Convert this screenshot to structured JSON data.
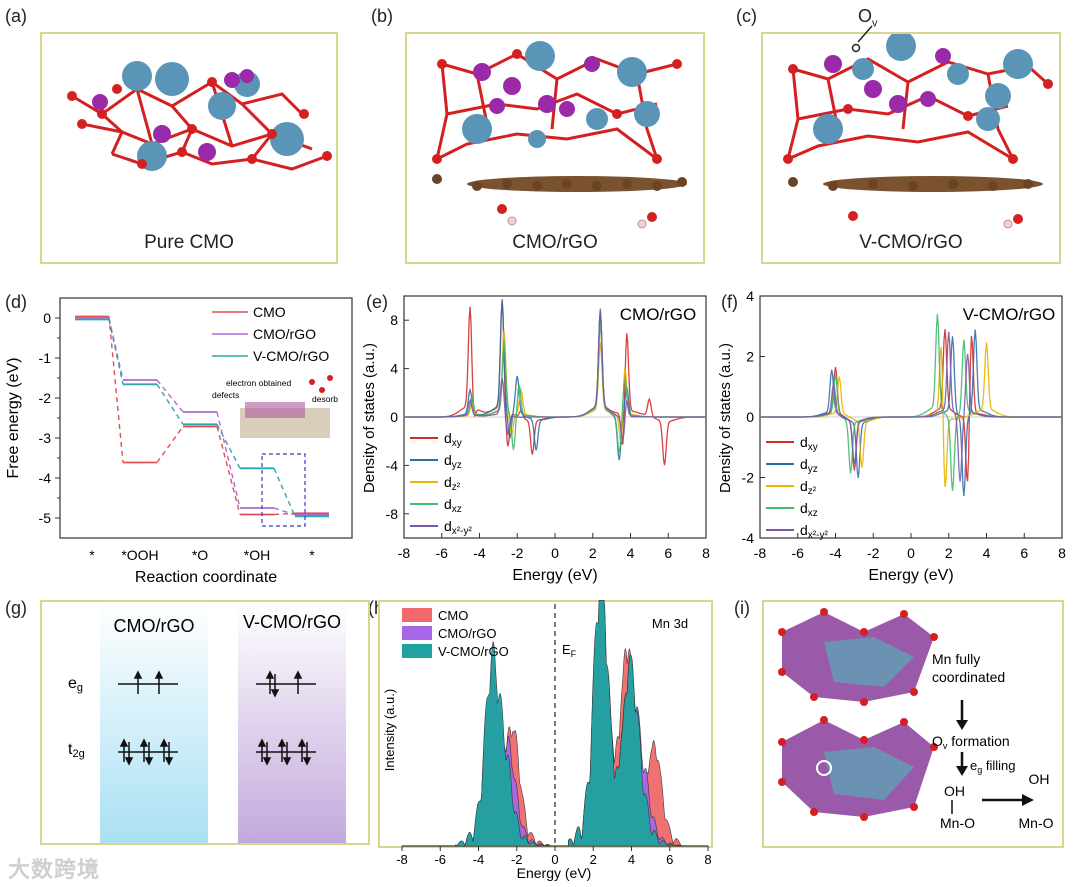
{
  "labels": {
    "a": "(a)",
    "b": "(b)",
    "c": "(c)",
    "d": "(d)",
    "e": "(e)",
    "f": "(f)",
    "g": "(g)",
    "h": "(h)",
    "i": "(i)"
  },
  "structures": {
    "a_caption": "Pure CMO",
    "b_caption": "CMO/rGO",
    "c_caption": "V-CMO/rGO",
    "ov_label": "O",
    "ov_sub": "v"
  },
  "panel_d": {
    "ylabel": "Free energy (eV)",
    "xlabel": "Reaction coordinate",
    "steps": [
      "*",
      "*OOH",
      "*O",
      "*OH",
      "*"
    ],
    "legend": [
      "CMO",
      "CMO/rGO",
      "V-CMO/rGO"
    ],
    "inset": {
      "electron": "electron obtained",
      "defects": "defects",
      "desorb": "desorb"
    }
  },
  "panel_e": {
    "title": "CMO/rGO",
    "xlabel": "Energy (eV)",
    "ylabel": "Density of states (a.u.)",
    "legend": [
      {
        "main": "d",
        "sub": "xy"
      },
      {
        "main": "d",
        "sub": "yz"
      },
      {
        "main": "d",
        "sub": "z²"
      },
      {
        "main": "d",
        "sub": "xz"
      },
      {
        "main": "d",
        "sub": "x²-y²"
      }
    ]
  },
  "panel_f": {
    "title": "V-CMO/rGO",
    "xlabel": "Energy (eV)",
    "ylabel": "Density of states (a.u.)",
    "legend": [
      {
        "main": "d",
        "sub": "xy"
      },
      {
        "main": "d",
        "sub": "yz"
      },
      {
        "main": "d",
        "sub": "z²"
      },
      {
        "main": "d",
        "sub": "xz"
      },
      {
        "main": "d",
        "sub": "x²-y²"
      }
    ]
  },
  "panel_g": {
    "col1": "CMO/rGO",
    "col2": "V-CMO/rGO",
    "eg_main": "e",
    "eg_sub": "g",
    "t2g_main": "t",
    "t2g_sub": "2g"
  },
  "panel_h": {
    "ylabel": "Intensity (a.u.)",
    "xlabel": "Energy (eV)",
    "legend": [
      "CMO",
      "CMO/rGO",
      "V-CMO/rGO"
    ],
    "tag": "Mn 3d",
    "ef_main": "E",
    "ef_sub": "F"
  },
  "panel_i": {
    "line1": "Mn fully",
    "line2": "coordinated",
    "ov_main": "O",
    "ov_sub": "v",
    "ov_rest": " formation",
    "eg_main": "e",
    "eg_sub": "g",
    "eg_rest": " filling",
    "oh": "OH",
    "mno": "Mn-O"
  },
  "watermark": "大数跨境",
  "chart_data": [
    {
      "type": "line",
      "title": "",
      "xlabel": "Reaction coordinate",
      "ylabel": "Free energy (eV)",
      "categories": [
        "*",
        "*OOH",
        "*O",
        "*OH",
        "*"
      ],
      "ylim": [
        -5.5,
        0.5
      ],
      "series": [
        {
          "name": "CMO",
          "values": [
            0,
            -3.65,
            -2.75,
            -4.95,
            -4.92
          ],
          "color": "#e05050"
        },
        {
          "name": "CMO/rGO",
          "values": [
            0,
            -1.55,
            -2.35,
            -4.75,
            -4.92
          ],
          "color": "#b066d8"
        },
        {
          "name": "V-CMO/rGO",
          "values": [
            0,
            -1.62,
            -2.62,
            -3.72,
            -4.92
          ],
          "color": "#2aa8a8"
        }
      ]
    },
    {
      "type": "line",
      "title": "CMO/rGO",
      "xlabel": "Energy (eV)",
      "ylabel": "Density of states (a.u.)",
      "xlim": [
        -8,
        8
      ],
      "ylim": [
        -10,
        10
      ],
      "series": [
        {
          "name": "dxy",
          "color": "#d62b2b",
          "peaks": [
            [
              -4.5,
              8.3
            ],
            [
              -2.8,
              8.8
            ],
            [
              -1.8,
              0.6
            ],
            [
              2.4,
              7.8
            ],
            [
              3.8,
              6.7
            ],
            [
              5.0,
              1.4
            ],
            [
              -4.3,
              -1.0
            ],
            [
              -2.5,
              -3.0
            ],
            [
              -1.2,
              -2.8
            ],
            [
              3.6,
              -3.2
            ],
            [
              5.8,
              -3.6
            ]
          ]
        },
        {
          "name": "dyz",
          "color": "#2f6fa8",
          "peaks": [
            [
              -4.5,
              2.0
            ],
            [
              -2.8,
              8.8
            ],
            [
              -2.0,
              3.0
            ],
            [
              2.4,
              7.9
            ],
            [
              3.8,
              2.5
            ],
            [
              -2.4,
              -2.5
            ],
            [
              -1.0,
              -2.5
            ],
            [
              3.4,
              -3.5
            ]
          ]
        },
        {
          "name": "dz²",
          "color": "#e8b400",
          "peaks": [
            [
              -4.4,
              1.0
            ],
            [
              -2.7,
              6.5
            ],
            [
              -1.8,
              2.0
            ],
            [
              2.4,
              5.5
            ],
            [
              3.7,
              4.0
            ],
            [
              -2.3,
              -2.0
            ],
            [
              3.5,
              -2.5
            ]
          ]
        },
        {
          "name": "dxz",
          "color": "#3dbb6e",
          "peaks": [
            [
              -4.4,
              1.5
            ],
            [
              -2.7,
              5.5
            ],
            [
              -1.9,
              2.5
            ],
            [
              2.4,
              7.0
            ],
            [
              3.7,
              3.0
            ],
            [
              -2.2,
              -3.0
            ],
            [
              3.4,
              -3.0
            ]
          ]
        },
        {
          "name": "dx²-y²",
          "color": "#7a5aa8",
          "peaks": [
            [
              -4.5,
              1.2
            ],
            [
              -2.8,
              3.0
            ],
            [
              2.4,
              8.0
            ],
            [
              3.8,
              1.5
            ],
            [
              -2.5,
              -1.5
            ],
            [
              3.6,
              -2.0
            ]
          ]
        }
      ]
    },
    {
      "type": "line",
      "title": "V-CMO/rGO",
      "xlabel": "Energy (eV)",
      "ylabel": "Density of states (a.u.)",
      "xlim": [
        -8,
        8
      ],
      "ylim": [
        -4,
        4
      ],
      "series": [
        {
          "name": "dxy",
          "color": "#d62b2b",
          "peaks": [
            [
              -4.0,
              1.5
            ],
            [
              1.8,
              2.6
            ],
            [
              3.2,
              2.8
            ],
            [
              -3.0,
              -1.6
            ],
            [
              3.0,
              -2.4
            ]
          ]
        },
        {
          "name": "dyz",
          "color": "#2f6fa8",
          "peaks": [
            [
              -4.2,
              1.4
            ],
            [
              2.2,
              2.5
            ],
            [
              3.4,
              2.7
            ],
            [
              -2.8,
              -1.8
            ],
            [
              2.8,
              -2.6
            ]
          ]
        },
        {
          "name": "dz²",
          "color": "#e8b400",
          "peaks": [
            [
              -3.8,
              1.2
            ],
            [
              1.6,
              2.5
            ],
            [
              4.0,
              2.2
            ],
            [
              -2.6,
              -1.5
            ],
            [
              1.8,
              -2.5
            ]
          ]
        },
        {
          "name": "dxz",
          "color": "#3dbb6e",
          "peaks": [
            [
              -4.0,
              1.3
            ],
            [
              1.4,
              3.1
            ],
            [
              2.8,
              2.4
            ],
            [
              -3.2,
              -1.7
            ],
            [
              2.2,
              -2.4
            ]
          ]
        },
        {
          "name": "dx²-y²",
          "color": "#7a5aa8",
          "peaks": [
            [
              -4.1,
              1.0
            ],
            [
              2.0,
              2.6
            ],
            [
              3.0,
              2.0
            ],
            [
              -3.0,
              -1.4
            ],
            [
              2.6,
              -2.2
            ]
          ]
        }
      ]
    },
    {
      "type": "area",
      "title": "Mn 3d",
      "xlabel": "Energy (eV)",
      "ylabel": "Intensity (a.u.)",
      "xlim": [
        -8,
        8
      ],
      "series": [
        {
          "name": "CMO",
          "color": "#f06a6a",
          "peaks": [
            [
              -3.3,
              0.6
            ],
            [
              -2.2,
              0.4
            ],
            [
              2.4,
              0.95
            ],
            [
              3.8,
              0.7
            ],
            [
              5.2,
              0.35
            ]
          ]
        },
        {
          "name": "CMO/rGO",
          "color": "#a666e6",
          "peaks": [
            [
              -3.3,
              0.62
            ],
            [
              -2.4,
              0.3
            ],
            [
              2.4,
              0.96
            ],
            [
              3.9,
              0.6
            ],
            [
              4.6,
              0.2
            ]
          ]
        },
        {
          "name": "V-CMO/rGO",
          "color": "#1fa3a0",
          "peaks": [
            [
              -3.3,
              0.64
            ],
            [
              -2.6,
              0.25
            ],
            [
              2.4,
              1.0
            ],
            [
              3.9,
              0.58
            ],
            [
              4.4,
              0.15
            ]
          ]
        }
      ]
    }
  ]
}
